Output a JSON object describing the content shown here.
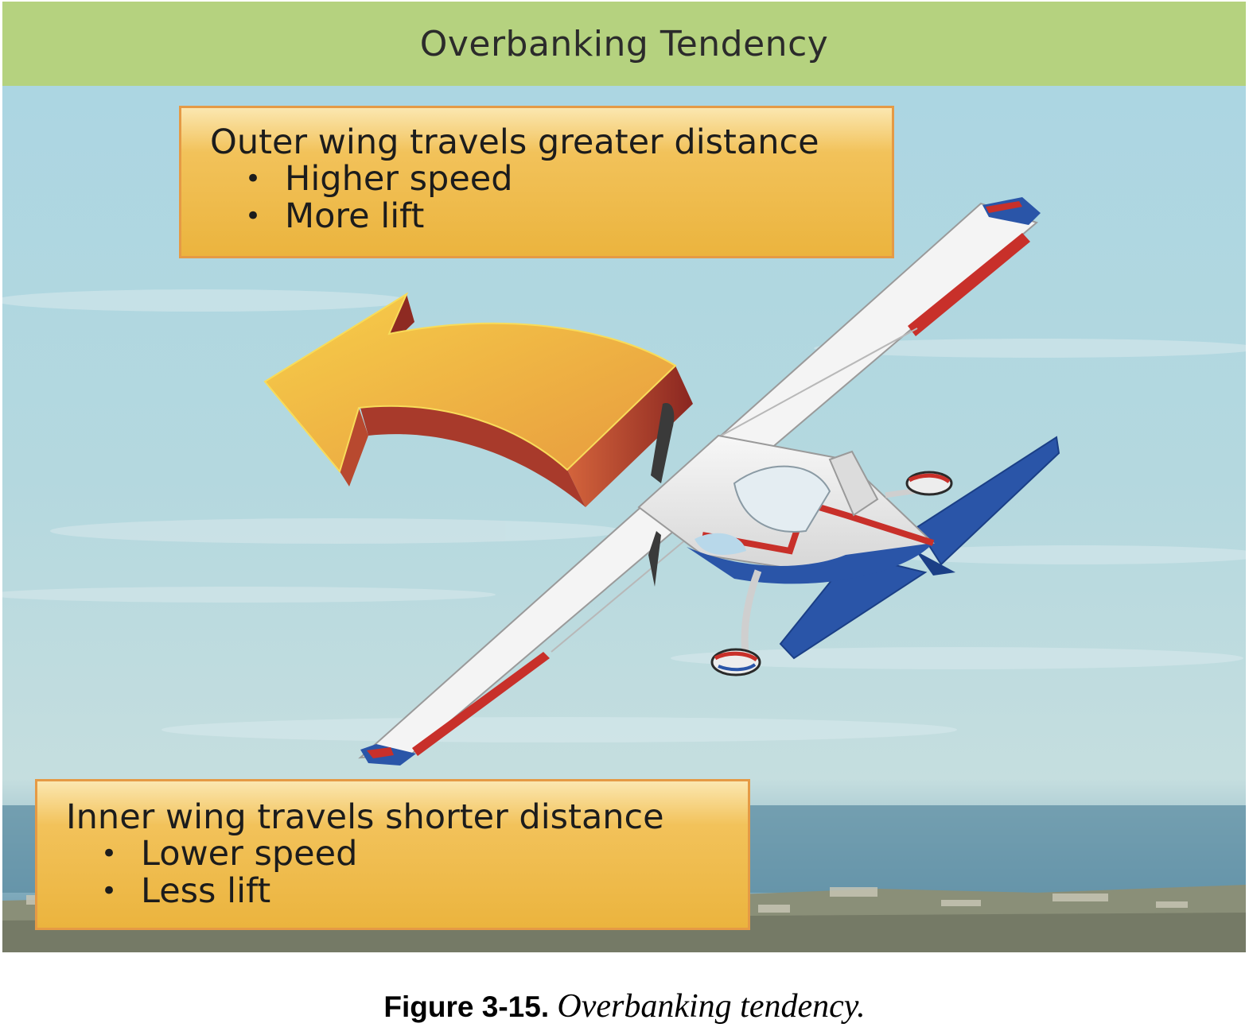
{
  "header": {
    "title": "Overbanking Tendency"
  },
  "outer_wing": {
    "heading": "Outer wing travels greater distance",
    "bullets": [
      "Higher speed",
      "More lift"
    ]
  },
  "inner_wing": {
    "heading": "Inner wing travels shorter distance",
    "bullets": [
      "Lower speed",
      "Less lift"
    ]
  },
  "caption": {
    "label": "Figure 3-15.",
    "text": "Overbanking tendency."
  },
  "colors": {
    "header_bg": "#b5d27f",
    "callout_fill": "#efbc4c",
    "callout_border": "#e59a45",
    "arrow_top": "#efa93f",
    "arrow_side": "#8e2a22",
    "airplane_red": "#c8302a",
    "airplane_blue": "#2a55a8"
  }
}
